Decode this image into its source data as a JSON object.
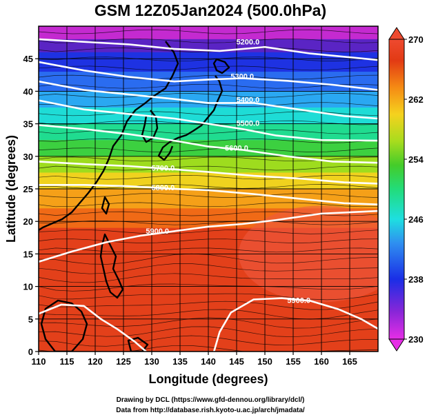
{
  "figure": {
    "title": "GSM 12Z05Jan2024 (500.0hPa)",
    "credit_line1": "Drawing by DCL (https://www.gfd-dennou.org/library/dcl/)",
    "credit_line2": "Data from http://database.rish.kyoto-u.ac.jp/arch/jmadata/"
  },
  "chart_data": {
    "type": "heatmap",
    "title": "GSM 12Z05Jan2024 (500.0hPa)",
    "xlabel": "Longitude (degrees)",
    "ylabel": "Latitude  (degrees)",
    "xlim": [
      110,
      170
    ],
    "ylim": [
      0,
      50
    ],
    "x_ticks": [
      110,
      115,
      120,
      125,
      130,
      135,
      140,
      145,
      150,
      155,
      160,
      165
    ],
    "y_ticks": [
      0,
      5,
      10,
      15,
      20,
      25,
      30,
      35,
      40,
      45
    ],
    "grid": true,
    "shaded_field": "temperature (K)",
    "colorbar": {
      "min": 230,
      "max": 270,
      "ticks": [
        230,
        238,
        246,
        254,
        262,
        270
      ],
      "colors": [
        "#e62ee6",
        "#6a1fc0",
        "#1a2ee6",
        "#2f8ff0",
        "#1edfe0",
        "#22dc7a",
        "#44cc2a",
        "#a8dc1e",
        "#f5d21e",
        "#f58a14",
        "#e23a14",
        "#ee4a30"
      ]
    },
    "contours": [
      {
        "level": "5200.0",
        "points": [
          [
            110,
            48.0
          ],
          [
            118,
            47.6
          ],
          [
            126,
            47.2
          ],
          [
            134,
            46.5
          ],
          [
            142,
            46.2
          ],
          [
            150,
            46.8
          ],
          [
            158,
            45.8
          ],
          [
            170,
            44.8
          ]
        ]
      },
      {
        "level": "5300.0",
        "points": [
          [
            110,
            44.5
          ],
          [
            118,
            43.2
          ],
          [
            126,
            42.2
          ],
          [
            134,
            41.5
          ],
          [
            140,
            41.8
          ],
          [
            146,
            42.0
          ],
          [
            154,
            41.6
          ],
          [
            162,
            41.0
          ],
          [
            170,
            40.2
          ]
        ]
      },
      {
        "level": "5400.0",
        "points": [
          [
            110,
            41.5
          ],
          [
            118,
            40.2
          ],
          [
            126,
            39.5
          ],
          [
            134,
            38.8
          ],
          [
            140,
            38.2
          ],
          [
            148,
            38.2
          ],
          [
            156,
            37.2
          ],
          [
            164,
            36.2
          ],
          [
            170,
            35.8
          ]
        ]
      },
      {
        "level": "5500.0",
        "points": [
          [
            110,
            38.6
          ],
          [
            118,
            37.2
          ],
          [
            126,
            36.5
          ],
          [
            134,
            35.8
          ],
          [
            140,
            35.0
          ],
          [
            146,
            34.2
          ],
          [
            152,
            33.2
          ],
          [
            160,
            32.5
          ],
          [
            170,
            32.4
          ]
        ]
      },
      {
        "level": "5600.0",
        "points": [
          [
            110,
            34.8
          ],
          [
            118,
            34.2
          ],
          [
            126,
            33.4
          ],
          [
            134,
            32.4
          ],
          [
            140,
            31.5
          ],
          [
            146,
            31.0
          ],
          [
            154,
            30.0
          ],
          [
            162,
            29.2
          ],
          [
            170,
            29.0
          ]
        ]
      },
      {
        "level": "5700.0",
        "points": [
          [
            110,
            29.2
          ],
          [
            118,
            28.8
          ],
          [
            126,
            28.5
          ],
          [
            134,
            28.0
          ],
          [
            140,
            27.6
          ],
          [
            148,
            27.0
          ],
          [
            156,
            26.6
          ],
          [
            164,
            26.0
          ],
          [
            170,
            25.8
          ]
        ]
      },
      {
        "level": "5800.0",
        "points": [
          [
            110,
            25.6
          ],
          [
            118,
            25.6
          ],
          [
            126,
            25.4
          ],
          [
            134,
            25.0
          ],
          [
            140,
            24.8
          ],
          [
            148,
            24.2
          ],
          [
            156,
            23.5
          ],
          [
            164,
            22.8
          ],
          [
            170,
            22.6
          ]
        ]
      },
      {
        "level": "5900.0",
        "points": [
          [
            110,
            13.8
          ],
          [
            116,
            15.4
          ],
          [
            122,
            16.8
          ],
          [
            128,
            17.8
          ],
          [
            134,
            18.5
          ],
          [
            140,
            19.2
          ],
          [
            146,
            19.6
          ],
          [
            152,
            20.2
          ],
          [
            160,
            21.2
          ],
          [
            170,
            21.6
          ]
        ]
      },
      {
        "level": "5900.0",
        "points": [
          [
            110,
            5.8
          ],
          [
            114,
            7.2
          ],
          [
            118,
            7.0
          ],
          [
            121,
            5.0
          ],
          [
            124,
            3.4
          ],
          [
            127,
            1.5
          ],
          [
            129,
            0
          ]
        ]
      },
      {
        "level": "5900.0",
        "points": [
          [
            141,
            0
          ],
          [
            142,
            3.0
          ],
          [
            144,
            6.0
          ],
          [
            148,
            8.0
          ],
          [
            153,
            8.2
          ],
          [
            158,
            7.8
          ],
          [
            163,
            6.5
          ],
          [
            167,
            5.0
          ],
          [
            170,
            3.5
          ]
        ]
      }
    ],
    "contour_label_positions": [
      {
        "text": "5200.0",
        "x": 147,
        "y": 47.5
      },
      {
        "text": "5300.0",
        "x": 146,
        "y": 42.2
      },
      {
        "text": "5400.0",
        "x": 147,
        "y": 38.6
      },
      {
        "text": "5500.0",
        "x": 147,
        "y": 35.0
      },
      {
        "text": "5600.0",
        "x": 145,
        "y": 31.2
      },
      {
        "text": "5700.0",
        "x": 132,
        "y": 28.1
      },
      {
        "text": "5800.0",
        "x": 132,
        "y": 25.1
      },
      {
        "text": "5900.0",
        "x": 131,
        "y": 18.4
      },
      {
        "text": "5900.0",
        "x": 156,
        "y": 7.8
      }
    ]
  }
}
